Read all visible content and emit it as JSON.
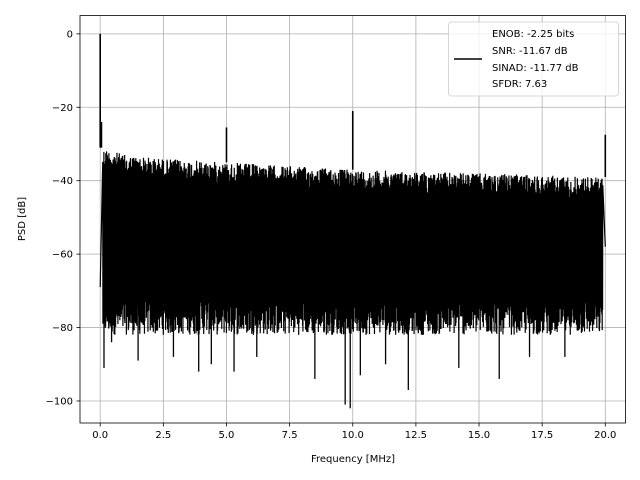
{
  "chart_data": {
    "type": "line",
    "title": "",
    "xlabel": "Frequency [MHz]",
    "ylabel": "PSD [dB]",
    "xlim": [
      -0.8,
      20.8
    ],
    "ylim": [
      -106,
      5
    ],
    "grid": true,
    "line_color": "#000000",
    "xticks": [
      0.0,
      2.5,
      5.0,
      7.5,
      10.0,
      12.5,
      15.0,
      17.5,
      20.0
    ],
    "xtick_labels": [
      "0.0",
      "2.5",
      "5.0",
      "7.5",
      "10.0",
      "12.5",
      "15.0",
      "17.5",
      "20.0"
    ],
    "yticks": [
      0,
      -20,
      -40,
      -60,
      -80,
      -100
    ],
    "ytick_labels": [
      "0",
      "−20",
      "−40",
      "−60",
      "−80",
      "−100"
    ],
    "legend": {
      "position": "upper right",
      "lines": [
        "ENOB: -2.25 bits",
        "SNR: -11.67 dB",
        "SINAD: -11.77 dB",
        "SFDR: 7.63"
      ]
    },
    "noise_band": {
      "x": [
        0.1,
        1.0,
        2.5,
        5.0,
        7.5,
        10.0,
        12.5,
        15.0,
        17.5,
        19.9
      ],
      "upper": [
        -31,
        -33,
        -34,
        -35,
        -36,
        -37,
        -37.5,
        -38,
        -38.5,
        -39
      ],
      "lower": [
        -82,
        -82,
        -82,
        -82,
        -82,
        -82,
        -82,
        -82,
        -82,
        -82
      ]
    },
    "spikes": [
      {
        "x": 0.0,
        "y": 0
      },
      {
        "x": 0.05,
        "y": -24
      },
      {
        "x": 5.0,
        "y": -25.5
      },
      {
        "x": 10.0,
        "y": -21
      },
      {
        "x": 20.0,
        "y": -27.5
      }
    ],
    "dips": [
      {
        "x": 0.15,
        "y": -91
      },
      {
        "x": 0.45,
        "y": -84
      },
      {
        "x": 1.5,
        "y": -89
      },
      {
        "x": 2.9,
        "y": -88
      },
      {
        "x": 3.9,
        "y": -92
      },
      {
        "x": 4.4,
        "y": -90
      },
      {
        "x": 5.3,
        "y": -92
      },
      {
        "x": 6.2,
        "y": -88
      },
      {
        "x": 8.5,
        "y": -94
      },
      {
        "x": 9.7,
        "y": -101
      },
      {
        "x": 9.9,
        "y": -102
      },
      {
        "x": 10.3,
        "y": -93
      },
      {
        "x": 11.3,
        "y": -90
      },
      {
        "x": 12.2,
        "y": -97
      },
      {
        "x": 14.2,
        "y": -91
      },
      {
        "x": 15.8,
        "y": -94
      },
      {
        "x": 17.0,
        "y": -88
      },
      {
        "x": 18.4,
        "y": -88
      }
    ],
    "endpoints": [
      {
        "x": 0.0,
        "y": -69
      },
      {
        "x": 20.0,
        "y": -58
      }
    ]
  }
}
